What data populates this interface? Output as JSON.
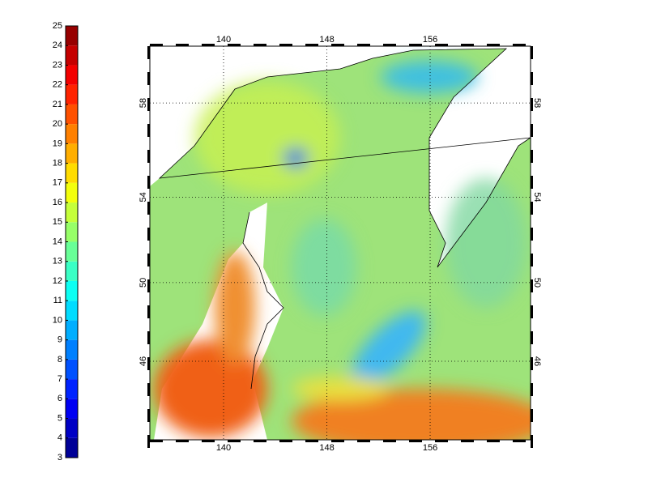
{
  "colorbar": {
    "ticks": [
      3,
      4,
      5,
      6,
      7,
      8,
      9,
      10,
      11,
      12,
      13,
      14,
      15,
      16,
      17,
      18,
      19,
      20,
      21,
      22,
      23,
      24,
      25
    ]
  },
  "map": {
    "lon_ticks": [
      140,
      148,
      156
    ],
    "lat_ticks": [
      58,
      54,
      50,
      46
    ]
  }
}
